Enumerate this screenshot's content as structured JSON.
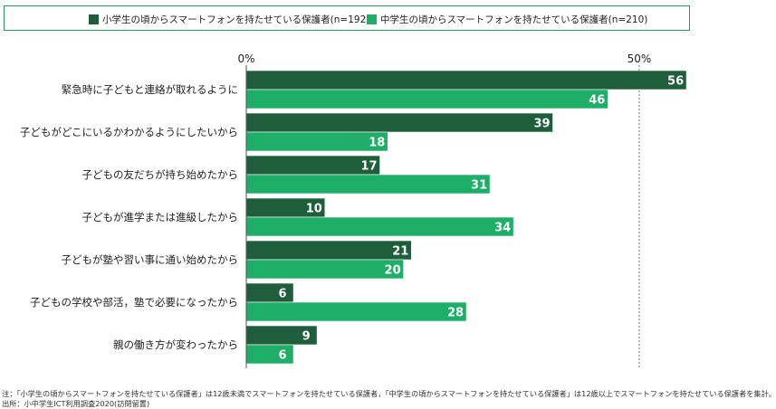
{
  "legend": [
    {
      "label": "小学生の頃からスマートフォンを持たせている保護者(n=192)",
      "color": "#1e5e3a"
    },
    {
      "label": "中学生の頃からスマートフォンを持たせている保護者(n=210)",
      "color": "#1fae67"
    }
  ],
  "chart_data": {
    "type": "bar",
    "orientation": "horizontal",
    "categories": [
      "緊急時に子どもと連絡が取れるように",
      "子どもがどこにいるかわかるようにしたいから",
      "子どもの友だちが持ち始めたから",
      "子どもが進学または進級したから",
      "子どもが塾や習い事に通い始めたから",
      "子どもの学校や部活，塾で必要になったから",
      "親の働き方が変わったから"
    ],
    "series": [
      {
        "name": "小学生の頃からスマートフォンを持たせている保護者(n=192)",
        "values": [
          56,
          39,
          17,
          10,
          21,
          6,
          9
        ],
        "color": "#1e5e3a"
      },
      {
        "name": "中学生の頃からスマートフォンを持たせている保護者(n=210)",
        "values": [
          46,
          18,
          31,
          34,
          20,
          28,
          6
        ],
        "color": "#1fae67"
      }
    ],
    "xlim": [
      0,
      59
    ],
    "ticks": [
      {
        "value": 0,
        "label": "0%"
      },
      {
        "value": 50,
        "label": "50%"
      }
    ],
    "reference_line": 50,
    "legend_position": "top"
  },
  "footnotes": [
    "注：「小学生の頃からスマートフォンを持たせている保護者」は12歳未満でスマートフォンを持たせている保護者，「中学生の頃からスマートフォンを持たせている保護者」は12歳以上でスマートフォンを持たせている保護者を集計。",
    "出所：小中学生ICT利用調査2020(訪問留置)"
  ]
}
